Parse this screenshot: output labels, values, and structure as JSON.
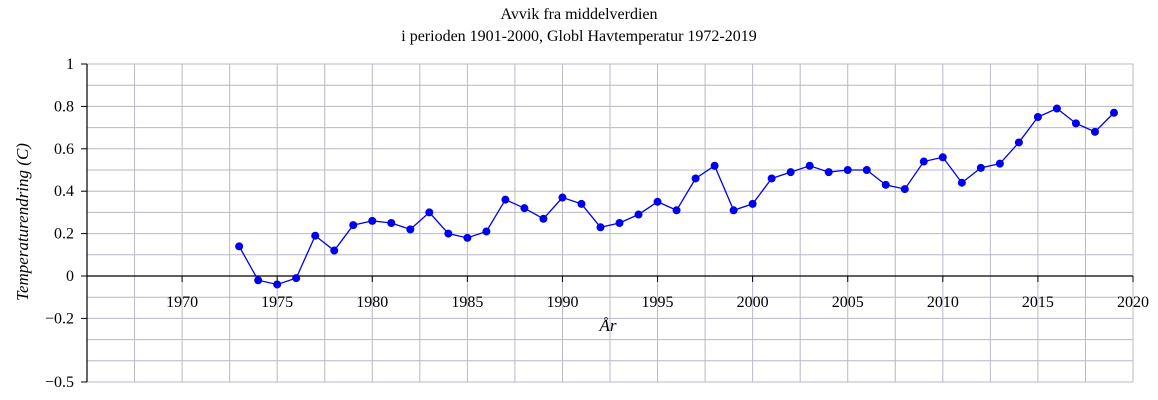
{
  "chart_data": {
    "type": "line",
    "title_line1": "Avvik fra middelverdien",
    "title_line2": "i perioden 1901-2000,  Globl Havtemperatur 1972-2019",
    "xlabel": "År",
    "ylabel": "Temperaturendring (C)",
    "xlim": [
      1965,
      2020
    ],
    "ylim": [
      -0.5,
      1
    ],
    "x_ticks": [
      1970,
      1975,
      1980,
      1985,
      1990,
      1995,
      2000,
      2005,
      2010,
      2015,
      2020
    ],
    "y_ticks": [
      -0.5,
      -0.2,
      0,
      0.2,
      0.4,
      0.6,
      0.8,
      1
    ],
    "y_tick_labels": [
      "−0.5",
      "−0.2",
      "0",
      "0.2",
      "0.4",
      "0.6",
      "0.8",
      "1"
    ],
    "grid": true,
    "line_color": "#0000ee",
    "marker_color": "#0000ee",
    "grid_color": "#b8b8c8",
    "series": [
      {
        "x": [
          1973,
          1974,
          1975,
          1976,
          1977,
          1978,
          1979,
          1980,
          1981,
          1982,
          1983,
          1984,
          1985,
          1986,
          1987,
          1988,
          1989,
          1990,
          1991,
          1992,
          1993,
          1994,
          1995,
          1996,
          1997,
          1998,
          1999,
          2000,
          2001,
          2002,
          2003,
          2004,
          2005,
          2006,
          2007,
          2008,
          2009,
          2010,
          2011,
          2012,
          2013,
          2014,
          2015,
          2016,
          2017,
          2018,
          2019
        ],
        "values": [
          0.14,
          -0.02,
          -0.04,
          -0.01,
          0.19,
          0.12,
          0.24,
          0.26,
          0.25,
          0.22,
          0.3,
          0.2,
          0.18,
          0.21,
          0.36,
          0.32,
          0.27,
          0.37,
          0.34,
          0.23,
          0.25,
          0.29,
          0.35,
          0.31,
          0.46,
          0.52,
          0.31,
          0.34,
          0.46,
          0.49,
          0.52,
          0.49,
          0.5,
          0.5,
          0.43,
          0.41,
          0.54,
          0.56,
          0.44,
          0.51,
          0.53,
          0.63,
          0.75,
          0.79,
          0.72,
          0.68,
          0.77
        ]
      }
    ]
  }
}
